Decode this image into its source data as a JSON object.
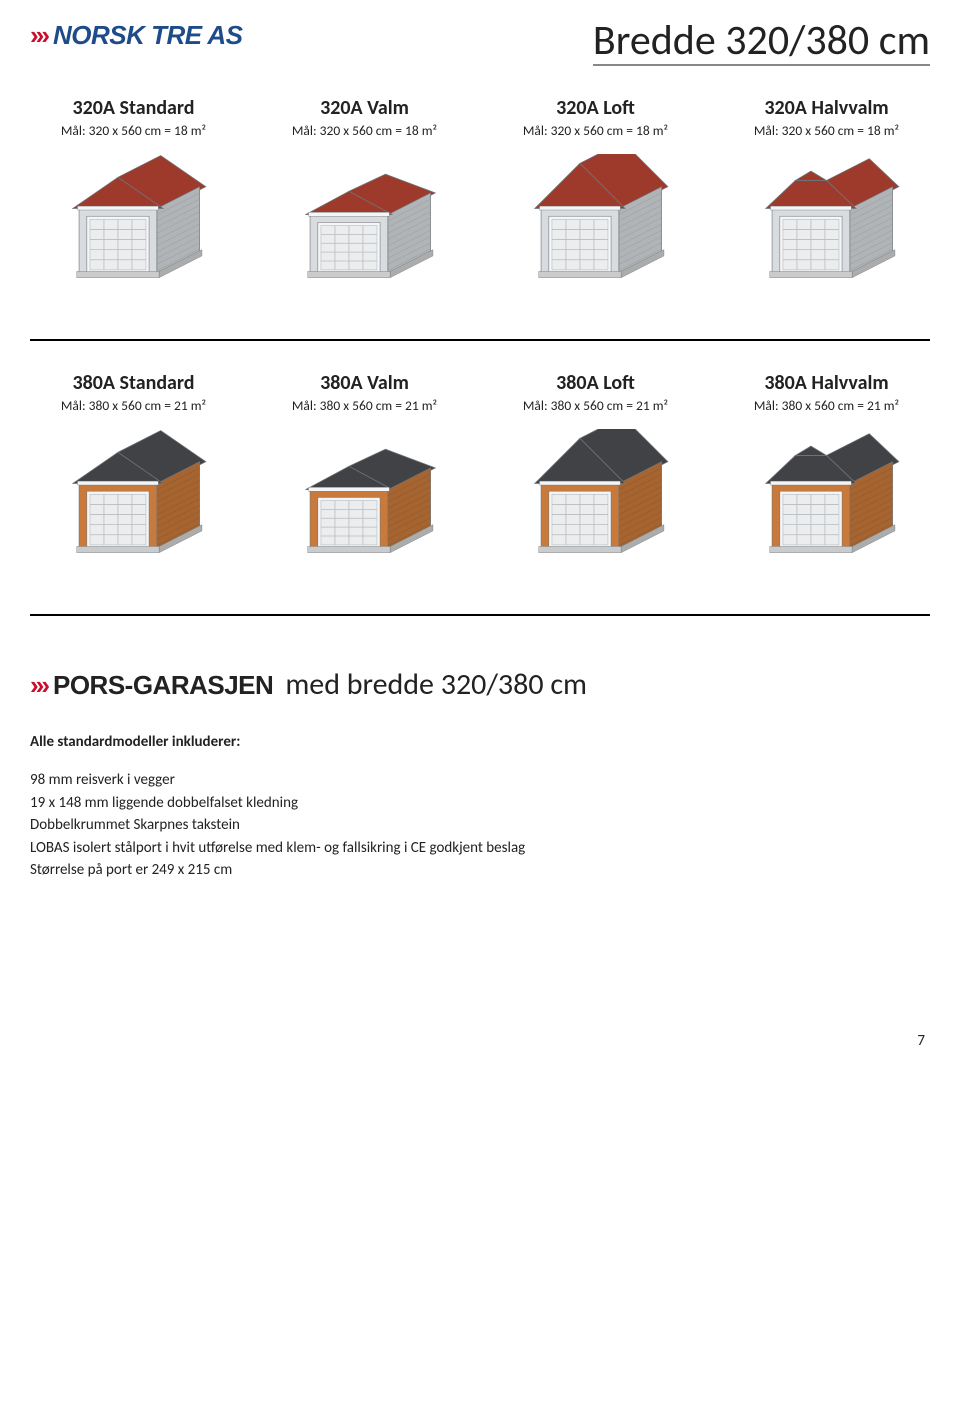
{
  "header": {
    "logo_prefix": "›››",
    "logo_text": "NORSK TRE AS",
    "page_title": "Bredde 320/380 cm"
  },
  "row320": {
    "wall_color": "#D8DCDF",
    "roof_color": "#9E3A2C",
    "models": [
      {
        "title": "320A Standard",
        "dim": "Mål: 320 x 560 cm = 18 m²",
        "roof": "gable"
      },
      {
        "title": "320A Valm",
        "dim": "Mål: 320 x 560 cm = 18 m²",
        "roof": "hip"
      },
      {
        "title": "320A Loft",
        "dim": "Mål: 320 x 560 cm = 18 m²",
        "roof": "gable-tall"
      },
      {
        "title": "320A Halvvalm",
        "dim": "Mål: 320 x 560 cm = 18 m²",
        "roof": "half-hip"
      }
    ]
  },
  "row380": {
    "wall_color": "#C97A3A",
    "roof_color": "#404246",
    "models": [
      {
        "title": "380A Standard",
        "dim": "Mål: 380 x 560 cm = 21 m²",
        "roof": "gable"
      },
      {
        "title": "380A Valm",
        "dim": "Mål: 380 x 560 cm = 21 m²",
        "roof": "hip"
      },
      {
        "title": "380A Loft",
        "dim": "Mål: 380 x 560 cm = 21 m²",
        "roof": "gable-tall"
      },
      {
        "title": "380A Halvvalm",
        "dim": "Mål: 380 x 560 cm = 21 m²",
        "roof": "half-hip"
      }
    ]
  },
  "section2": {
    "logo_prefix": "›››",
    "logo_text": "PORS-GARASJEN",
    "suffix": "med bredde 320/380 cm"
  },
  "includes": {
    "heading": "Alle standardmodeller inkluderer:",
    "items": [
      "98 mm reisverk i vegger",
      "19 x 148 mm liggende dobbelfalset kledning",
      "Dobbelkrummet Skarpnes takstein",
      "LOBAS isolert stålport i hvit utførelse med klem- og fallsikring i CE godkjent beslag",
      "Størrelse på port er 249 x 215 cm"
    ]
  },
  "page_number": "7",
  "style": {
    "door_color": "#EBEDEE",
    "door_line": "#B8BCBF",
    "base_color": "#C9CBCC",
    "trim_color": "#F4F5F6",
    "shadow": "#9AA0A4"
  }
}
